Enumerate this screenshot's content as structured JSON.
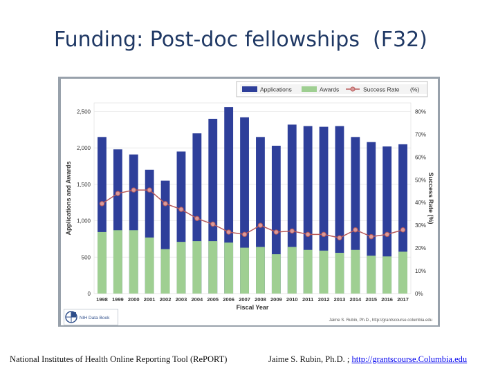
{
  "slide": {
    "title": "Funding: Post-doc fellowships  (F32)"
  },
  "footer": {
    "left": "National Institutes of Health Online Reporting Tool (RePORT)",
    "right_prefix": "Jaime S. Rubin, Ph.D. ; ",
    "right_link": "http://grantscourse.Columbia.edu"
  },
  "chart_data": {
    "type": "bar",
    "xlabel": "Fiscal Year",
    "ylabel": "Applications and Awards",
    "y2label": "Success Rate (%)",
    "categories": [
      "1998",
      "1999",
      "2000",
      "2001",
      "2002",
      "2003",
      "2004",
      "2005",
      "2006",
      "2007",
      "2008",
      "2009",
      "2010",
      "2011",
      "2012",
      "2013",
      "2014",
      "2015",
      "2016",
      "2017"
    ],
    "ylim": [
      0,
      2500
    ],
    "yticks": [
      "0",
      "500",
      "1,000",
      "1,500",
      "2,000",
      "2,500"
    ],
    "y2lim": [
      0,
      80
    ],
    "y2ticks": [
      "0%",
      "10%",
      "20%",
      "30%",
      "40%",
      "50%",
      "60%",
      "70%",
      "80%"
    ],
    "legend_position": "top-right",
    "grid": true,
    "series": [
      {
        "name": "Applications",
        "kind": "bar",
        "color": "#2e3f9a",
        "values": [
          2150,
          1980,
          1910,
          1700,
          1550,
          1950,
          2200,
          2400,
          2560,
          2420,
          2150,
          2030,
          2320,
          2300,
          2290,
          2300,
          2150,
          2080,
          2020,
          2050
        ]
      },
      {
        "name": "Awards",
        "kind": "bar",
        "color": "#9fcf92",
        "values": [
          845,
          870,
          870,
          770,
          610,
          710,
          720,
          720,
          700,
          630,
          640,
          540,
          640,
          600,
          590,
          560,
          600,
          520,
          510,
          575
        ]
      },
      {
        "name": "Success Rate",
        "unit": "(%)",
        "kind": "line",
        "color": "#b85a5a",
        "values": [
          39.5,
          44,
          45.5,
          45.5,
          39.5,
          37,
          33,
          30.5,
          27,
          26,
          30,
          27,
          27.5,
          26,
          26,
          24.5,
          28,
          25,
          26,
          28
        ]
      }
    ]
  },
  "branding": {
    "logo": "NIH Data Book",
    "credit": "Jaime S. Rubin, Ph.D., http://grantscourse.columbia.edu"
  }
}
